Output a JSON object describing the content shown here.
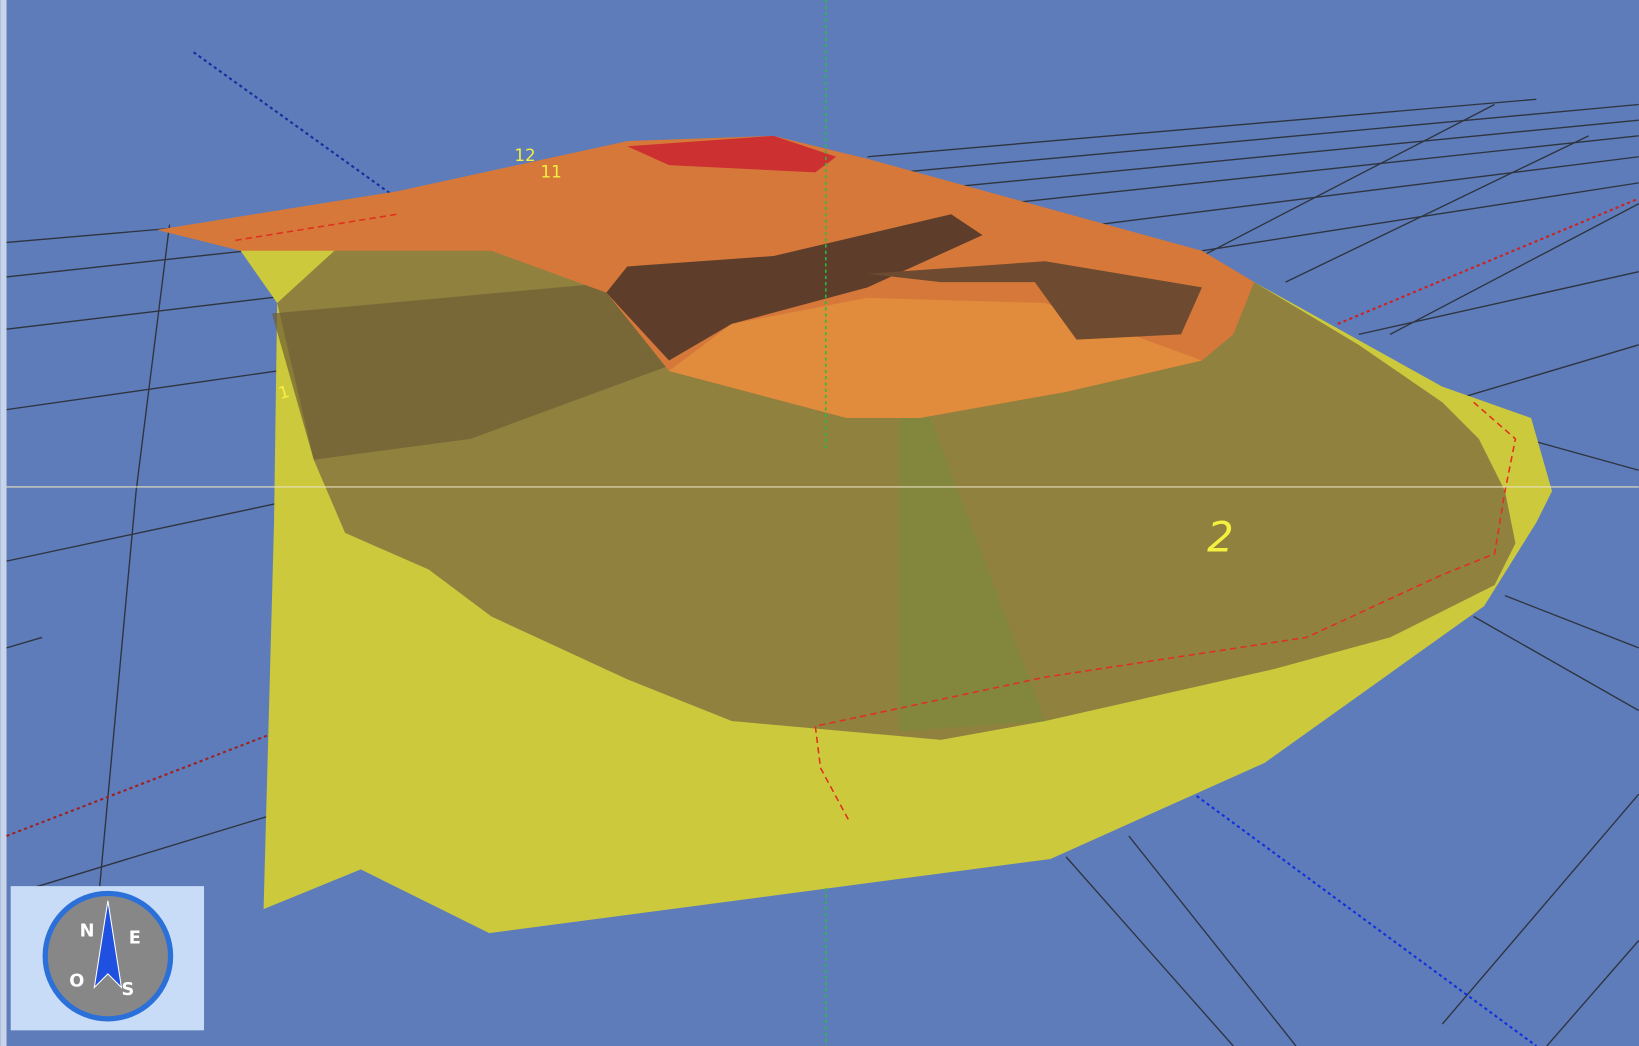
{
  "contour_labels": [
    "12",
    "11",
    "1",
    "2"
  ],
  "compass": {
    "north": "N",
    "east": "E",
    "west": "O",
    "south": "S"
  }
}
